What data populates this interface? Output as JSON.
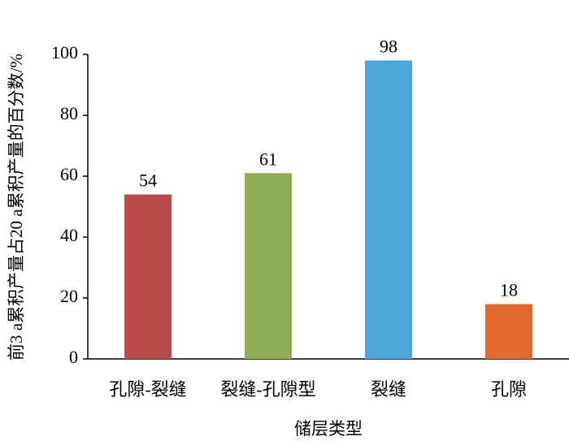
{
  "chart_data": {
    "type": "bar",
    "ylabel": "前3 a累积产量占20 a累积产量的百分数/%",
    "xlabel": "储层类型",
    "categories": [
      "孔隙-裂缝",
      "裂缝-孔隙型",
      "裂缝",
      "孔隙"
    ],
    "values": [
      54,
      61,
      98,
      18
    ],
    "colors": [
      "#b84b49",
      "#8fad57",
      "#4ca7da",
      "#e2692e"
    ],
    "ylim": [
      0,
      100
    ],
    "yticks": [
      0,
      20,
      40,
      60,
      80,
      100
    ],
    "grid": false
  }
}
